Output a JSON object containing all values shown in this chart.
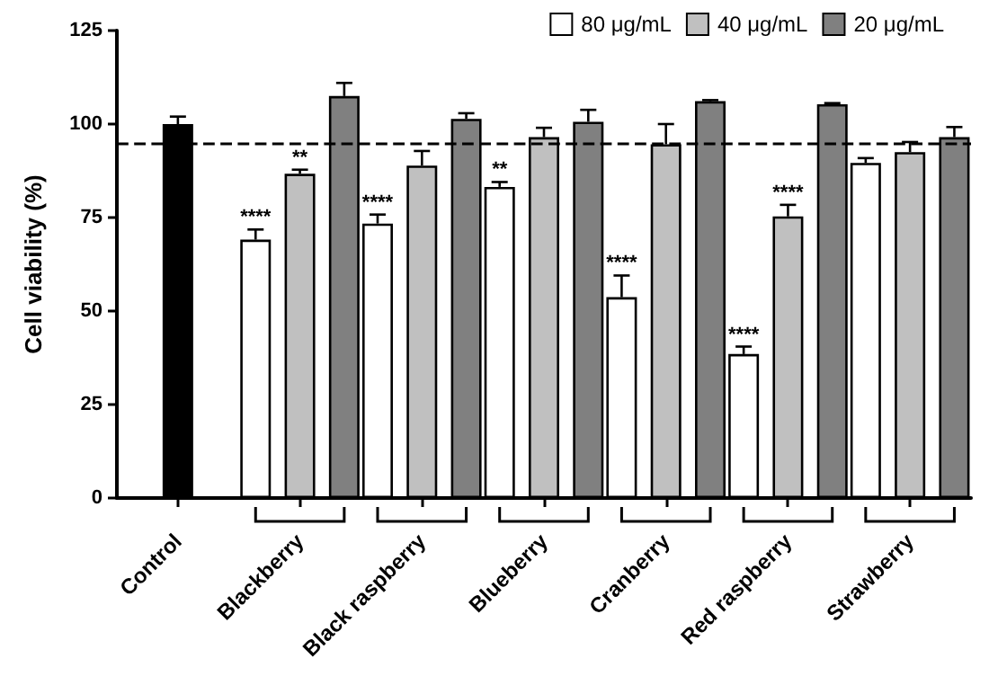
{
  "chart_data": {
    "type": "bar",
    "ylabel": "Cell viability (%)",
    "categories": [
      "Control",
      "Blackberry",
      "Black raspberry",
      "Blueberry",
      "Cranberry",
      "Red raspberry",
      "Strawberry"
    ],
    "series": [
      {
        "name": "80 μg/mL",
        "color": "#ffffff",
        "values": [
          null,
          69.1,
          73.4,
          83.2,
          53.7,
          38.5,
          89.6
        ],
        "value_labels": [
          null,
          "****",
          "****",
          "**",
          "****",
          "****",
          null
        ],
        "errors": [
          null,
          [
            69.1,
            71.8
          ],
          [
            73.4,
            75.8
          ],
          [
            83.2,
            84.5
          ],
          [
            53.7,
            59.5
          ],
          [
            38.5,
            40.5
          ],
          [
            89.6,
            90.9
          ]
        ]
      },
      {
        "name": "40 μg/mL",
        "color": "#c0c0c0",
        "values": [
          null,
          86.7,
          88.9,
          96.5,
          94.6,
          75.3,
          92.5
        ],
        "value_labels": [
          null,
          "**",
          null,
          null,
          null,
          "****",
          null
        ],
        "errors": [
          null,
          [
            86.7,
            87.8
          ],
          [
            88.9,
            92.8
          ],
          [
            96.5,
            99
          ],
          [
            94.6,
            100
          ],
          [
            75.3,
            78.4
          ],
          [
            92.5,
            95.2
          ]
        ]
      },
      {
        "name": "20 μg/mL",
        "color": "#808080",
        "values": [
          null,
          107.5,
          101.4,
          100.6,
          106.1,
          105.3,
          96.5
        ],
        "errors": [
          null,
          [
            107.5,
            111
          ],
          [
            101.4,
            102.9
          ],
          [
            100.6,
            103.8
          ],
          [
            106.1,
            106.4
          ],
          [
            105.3,
            105.6
          ],
          [
            96.5,
            99.2
          ]
        ]
      },
      {
        "color": "#000000",
        "values": [
          100,
          null,
          null,
          null,
          null,
          null,
          null
        ],
        "errors": [
          [
            100,
            102
          ],
          null,
          null,
          null,
          null,
          null,
          null
        ]
      }
    ],
    "ylim": [
      0,
      125
    ],
    "yticks": [
      0,
      25,
      50,
      75,
      100,
      125
    ],
    "grid": false,
    "legend": "top right",
    "ref_lines": [
      {
        "axis": "y",
        "value": 95,
        "color": "#000000",
        "line_style": "dashed"
      }
    ]
  }
}
